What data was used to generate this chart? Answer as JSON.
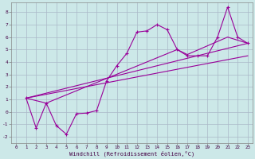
{
  "xlabel": "Windchill (Refroidissement éolien,°C)",
  "xlim": [
    -0.5,
    23.5
  ],
  "ylim": [
    -2.5,
    8.8
  ],
  "xticks": [
    0,
    1,
    2,
    3,
    4,
    5,
    6,
    7,
    8,
    9,
    10,
    11,
    12,
    13,
    14,
    15,
    16,
    17,
    18,
    19,
    20,
    21,
    22,
    23
  ],
  "yticks": [
    -2,
    -1,
    0,
    1,
    2,
    3,
    4,
    5,
    6,
    7,
    8
  ],
  "bg_color": "#cce8e8",
  "grid_color": "#aab8c8",
  "line_color": "#990099",
  "main_x": [
    1,
    2,
    3,
    4,
    5,
    6,
    7,
    8,
    9,
    10,
    11,
    12,
    13,
    14,
    15,
    16,
    17,
    18,
    19,
    20,
    21,
    22,
    23
  ],
  "main_y": [
    1.1,
    -1.3,
    0.7,
    -1.1,
    -1.8,
    -0.15,
    -0.1,
    0.1,
    2.5,
    3.7,
    4.7,
    6.4,
    6.5,
    7.0,
    6.6,
    5.0,
    4.5,
    4.5,
    4.5,
    6.0,
    8.4,
    6.0,
    5.5
  ],
  "trend1_x": [
    1,
    3,
    16,
    17,
    21,
    23
  ],
  "trend1_y": [
    1.1,
    0.7,
    5.0,
    4.6,
    6.0,
    5.5
  ],
  "trend2_x": [
    1,
    23
  ],
  "trend2_y": [
    1.1,
    5.5
  ],
  "trend3_x": [
    1,
    23
  ],
  "trend3_y": [
    1.1,
    4.5
  ],
  "figsize": [
    3.2,
    2.0
  ],
  "dpi": 100
}
